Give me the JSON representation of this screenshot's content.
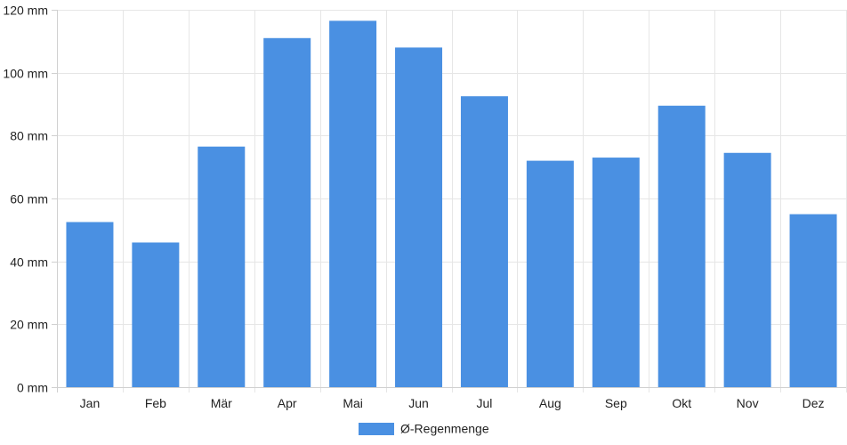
{
  "chart_data": {
    "type": "bar",
    "categories": [
      "Jan",
      "Feb",
      "Mär",
      "Apr",
      "Mai",
      "Jun",
      "Jul",
      "Aug",
      "Sep",
      "Okt",
      "Nov",
      "Dez"
    ],
    "series": [
      {
        "name": "Ø-Regenmenge",
        "color": "#4a90e2",
        "values": [
          52.5,
          46,
          76.5,
          111,
          116.5,
          108,
          92.5,
          72,
          73,
          89.5,
          74.5,
          55
        ]
      }
    ],
    "ylim": [
      0,
      120
    ],
    "y_ticks": [
      "0 mm",
      "20 mm",
      "40 mm",
      "60 mm",
      "80 mm",
      "100 mm",
      "120 mm"
    ],
    "y_tick_values": [
      0,
      20,
      40,
      60,
      80,
      100,
      120
    ],
    "grid": true,
    "legend_position": "bottom-center"
  }
}
